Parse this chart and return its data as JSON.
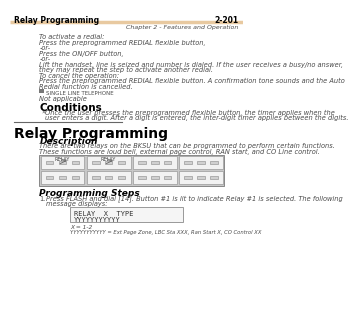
{
  "header_left": "Relay Programming",
  "header_right": "2-201",
  "header_sub_right": "Chapter 2 - Features and Operation",
  "header_line_color": "#e8c9a0",
  "bg_color": "#ffffff",
  "text_color": "#4a4a4a",
  "title_color": "#000000",
  "section_title": "Relay Programming",
  "desc_heading": "Description",
  "desc_text1": "There are two relays on the BKSU that can be programmed to perform certain functions.",
  "desc_text2": "These functions are loud bell, external page control, RAN start, and CO Line control.",
  "prog_steps_heading": "Programming Steps",
  "prog_step1a": "Press FLASH and dial [14]. Button #1 is lit to indicate Relay #1 is selected. The following",
  "prog_step1b": "message displays:",
  "display_line1": "RELAY  X  TYPE",
  "display_line2": "YYYYYYYYYYY",
  "note_x": "X = 1-2",
  "note_y": "YYYYYYYYYYY = Ext Page Zone, LBC Sta XXX, Ran Start X, CO Control XX",
  "single_line_label": "SINGLE LINE TELEPHONE",
  "not_applicable": "Not applicable",
  "conditions_heading": "Conditions",
  "body_line1": "To activate a redial:",
  "body_line2": "Press the preprogrammed REDIAL flexible button,",
  "body_line3": "-or-",
  "body_line4": "Press the ON/OFF button,",
  "body_line5": "-or-",
  "body_line6": "Lift the handset, line is seized and number is dialed. If the user receives a busy/no answer,",
  "body_line7": "they may repeat the step to activate another redial.",
  "body_line8": "To cancel the operation:",
  "body_line9": "Press the preprogrammed REDIAL flexible button. A confirmation tone sounds and the Auto",
  "body_line10": "Redial function is cancelled.",
  "cond_bullet1": "Once the user presses the preprogrammed flexible button, the timer applies when the",
  "cond_bullet2": "user enters a digit. After a digit is entered, the inter-digit timer applies between the digits."
}
